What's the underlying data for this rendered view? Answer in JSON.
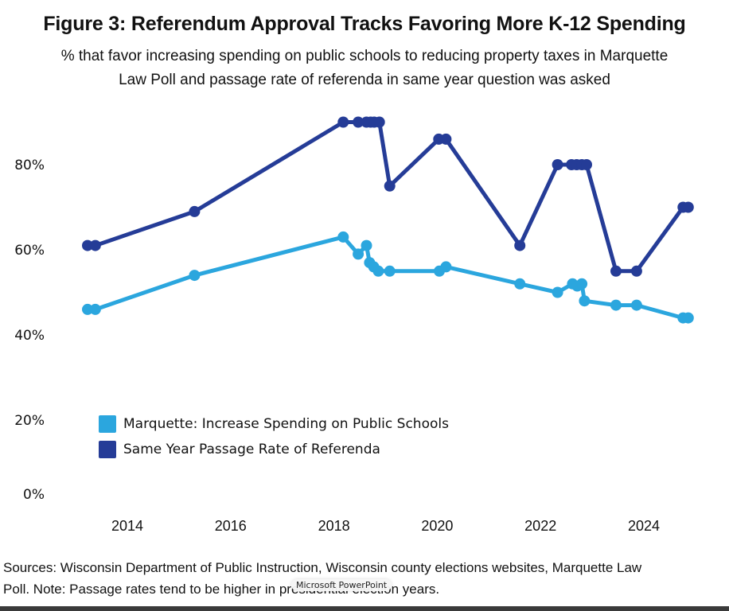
{
  "title": "Figure 3: Referendum Approval Tracks Favoring More K-12 Spending",
  "subtitle_lines": [
    "% that favor increasing spending on public schools to reducing property taxes in Marquette",
    "Law Poll and passage rate of referenda in same year question was asked"
  ],
  "footer_lines": [
    "Sources: Wisconsin Department of Public Instruction, Wisconsin county elections websites, Marquette Law",
    "Poll. Note: Passage rates tend to be higher in presidential election years."
  ],
  "tooltip": "Microsoft PowerPoint",
  "chart_data": {
    "type": "line",
    "title": "Figure 3: Referendum Approval Tracks Favoring More K-12 Spending",
    "xlabel": "",
    "ylabel": "",
    "xlim": [
      2013.0,
      2025.0
    ],
    "ylim": [
      0,
      90
    ],
    "x_ticks": [
      2014,
      2016,
      2018,
      2020,
      2022,
      2024
    ],
    "x_tick_labels": [
      "2014",
      "2016",
      "2018",
      "2020",
      "2022",
      "2024"
    ],
    "y_ticks": [
      0,
      20,
      40,
      60,
      80
    ],
    "y_tick_labels": [
      "0%",
      "20%",
      "40%",
      "60%",
      "80%"
    ],
    "grid": false,
    "legend_position": "bottom-left",
    "series": [
      {
        "name": "Marquette: Increase Spending on Public Schools",
        "color": "#2BA6DE",
        "points": [
          [
            2013.23,
            46
          ],
          [
            2013.38,
            46
          ],
          [
            2015.3,
            54
          ],
          [
            2018.18,
            63
          ],
          [
            2018.47,
            59
          ],
          [
            2018.63,
            61
          ],
          [
            2018.69,
            57
          ],
          [
            2018.77,
            56
          ],
          [
            2018.86,
            55
          ],
          [
            2019.08,
            55
          ],
          [
            2020.04,
            55
          ],
          [
            2020.17,
            56
          ],
          [
            2021.6,
            52
          ],
          [
            2022.33,
            50
          ],
          [
            2022.62,
            52
          ],
          [
            2022.71,
            51.5
          ],
          [
            2022.8,
            52
          ],
          [
            2022.85,
            48
          ],
          [
            2023.46,
            47
          ],
          [
            2023.86,
            47
          ],
          [
            2024.76,
            44
          ],
          [
            2024.86,
            44
          ]
        ]
      },
      {
        "name": "Same Year Passage Rate of Referenda",
        "color": "#253C97",
        "points": [
          [
            2013.23,
            61
          ],
          [
            2013.38,
            61
          ],
          [
            2015.3,
            69
          ],
          [
            2018.18,
            90
          ],
          [
            2018.47,
            90
          ],
          [
            2018.63,
            90
          ],
          [
            2018.71,
            90
          ],
          [
            2018.78,
            90
          ],
          [
            2018.88,
            90
          ],
          [
            2019.08,
            75
          ],
          [
            2020.03,
            86
          ],
          [
            2020.17,
            86
          ],
          [
            2021.6,
            61
          ],
          [
            2022.33,
            80
          ],
          [
            2022.6,
            80
          ],
          [
            2022.7,
            80
          ],
          [
            2022.8,
            80
          ],
          [
            2022.89,
            80
          ],
          [
            2023.46,
            55
          ],
          [
            2023.86,
            55
          ],
          [
            2024.76,
            70
          ],
          [
            2024.86,
            70
          ]
        ]
      }
    ]
  }
}
